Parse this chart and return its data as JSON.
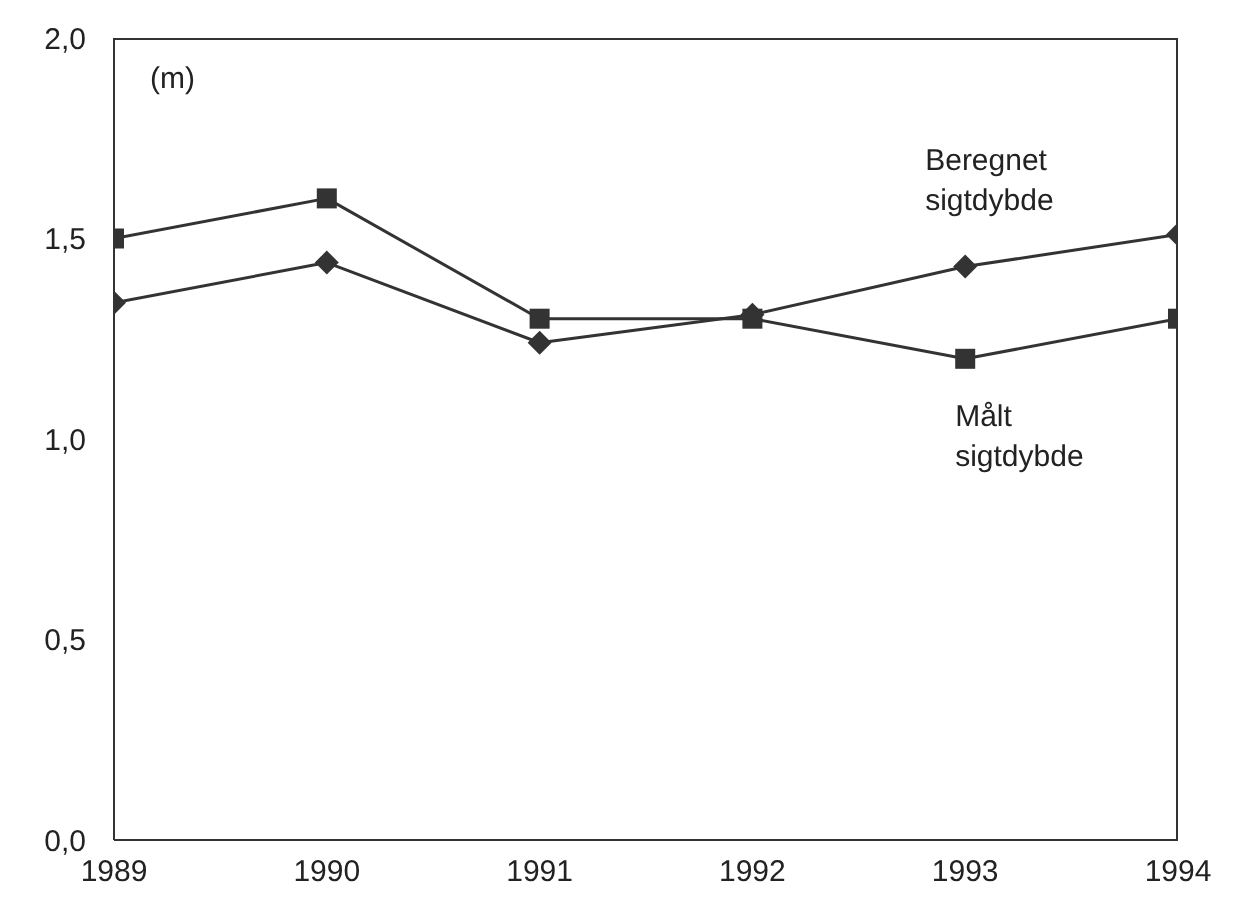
{
  "chart_data": {
    "type": "line",
    "ylabel": "(m)",
    "x": [
      1989,
      1990,
      1991,
      1992,
      1993,
      1994
    ],
    "xlim": [
      1989,
      1994
    ],
    "xticks": [
      1989,
      1990,
      1991,
      1992,
      1993,
      1994
    ],
    "ylim": [
      0,
      2
    ],
    "yticks": [
      {
        "value": 0,
        "label": "0,0"
      },
      {
        "value": 0.5,
        "label": "0,5"
      },
      {
        "value": 1,
        "label": "1,0"
      },
      {
        "value": 1.5,
        "label": "1,5"
      },
      {
        "value": 2,
        "label": "2,0"
      }
    ],
    "line_style": "solid",
    "series": [
      {
        "name": "Beregnet sigtdybde",
        "color": "#333333",
        "marker": "diamond",
        "values": [
          1.34,
          1.44,
          1.24,
          1.31,
          1.43,
          1.51
        ]
      },
      {
        "name": "Målt sigtdybde",
        "color": "#333333",
        "marker": "square",
        "values": [
          1.5,
          1.6,
          1.3,
          1.3,
          1.2,
          1.3
        ]
      }
    ]
  }
}
